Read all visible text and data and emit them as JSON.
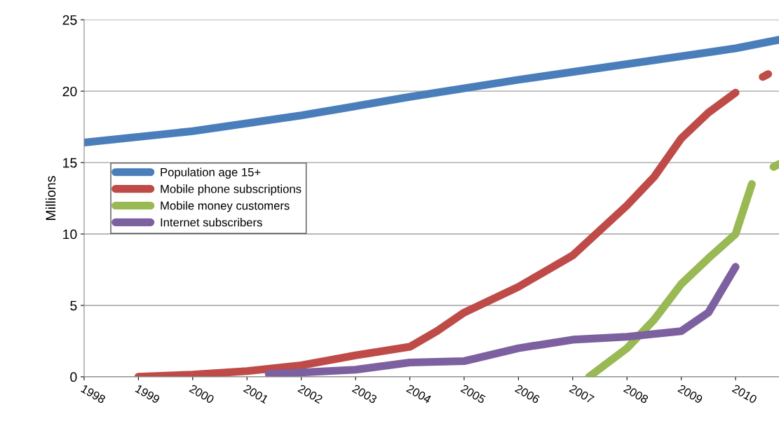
{
  "chart_data": {
    "type": "line",
    "ylabel": "Millions",
    "xlim": [
      1998,
      2010.8
    ],
    "xticks": [
      1998,
      1999,
      2000,
      2001,
      2002,
      2003,
      2004,
      2005,
      2006,
      2007,
      2008,
      2009,
      2010
    ],
    "ylim": [
      0,
      25
    ],
    "yticks": [
      0,
      5,
      10,
      15,
      20,
      25
    ],
    "grid": "y",
    "legend": "left",
    "line_style": "solid",
    "series": [
      {
        "name": "Population age 15+",
        "color": "#4a7ebb",
        "x": [
          1998,
          2000,
          2002,
          2004,
          2006,
          2008,
          2010,
          2010.8
        ],
        "values": [
          16.4,
          17.2,
          18.3,
          19.6,
          20.8,
          21.9,
          23.0,
          23.6
        ]
      },
      {
        "name": "Mobile phone subscriptions",
        "color": "#be4b48",
        "x": [
          1999,
          2000,
          2001,
          2002,
          2003,
          2004,
          2004.5,
          2005,
          2006,
          2007,
          2008,
          2008.5,
          2009,
          2009.5,
          2010,
          2010.3,
          2010.5,
          2010.6
        ],
        "values": [
          0,
          0.15,
          0.4,
          0.8,
          1.5,
          2.1,
          3.2,
          4.5,
          6.3,
          8.5,
          12,
          14,
          16.7,
          18.5,
          19.9,
          null,
          21.0,
          21.2
        ]
      },
      {
        "name": "Mobile money customers",
        "color": "#98b954",
        "x": [
          2007.3,
          2008,
          2008.5,
          2009,
          2009.5,
          2010,
          2010.3,
          2010.5,
          2010.7,
          2010.8
        ],
        "values": [
          0,
          2.0,
          4,
          6.5,
          8.3,
          10,
          13.5,
          null,
          14.7,
          14.9
        ]
      },
      {
        "name": "Internet subscribers",
        "color": "#7d60a0",
        "x": [
          2001.4,
          2002,
          2003,
          2004,
          2005,
          2006,
          2007,
          2008,
          2009,
          2009.5,
          2010
        ],
        "values": [
          0.2,
          0.3,
          0.5,
          1.0,
          1.1,
          2.0,
          2.6,
          2.8,
          3.2,
          4.5,
          7.7
        ]
      }
    ]
  }
}
